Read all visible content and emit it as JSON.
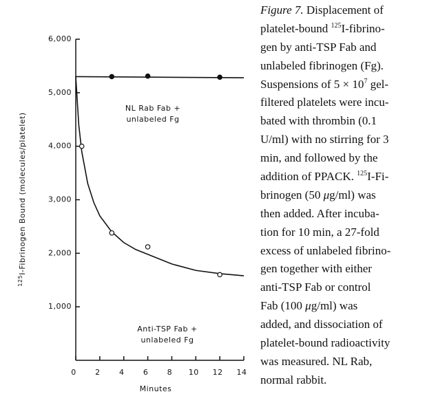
{
  "chart_data": {
    "type": "scatter",
    "x_label": "Minutes",
    "y_label": {
      "sup": "125",
      "text": "I-Fibrinogen Bound (molecules/platelet)"
    },
    "xlim": [
      0,
      14
    ],
    "xticks": [
      0,
      2,
      4,
      6,
      8,
      10,
      12,
      14
    ],
    "ylim": [
      0,
      6000
    ],
    "yticks": [
      {
        "value": 1000,
        "label": "1,000"
      },
      {
        "value": 2000,
        "label": "2,000"
      },
      {
        "value": 3000,
        "label": "3,000"
      },
      {
        "value": 4000,
        "label": "4,000"
      },
      {
        "value": 5000,
        "label": "5,000"
      },
      {
        "value": 6000,
        "label": "6,000"
      }
    ],
    "color": "#111111",
    "series": [
      {
        "name": [
          "NL Rab Fab +",
          "unlabeled Fg"
        ],
        "marker": "filled",
        "x": [
          3,
          6,
          12
        ],
        "values": [
          5300,
          5310,
          5290
        ],
        "fit_x": [
          0,
          14
        ],
        "fit_values": [
          5300,
          5280
        ]
      },
      {
        "name": [
          "Anti-TSP Fab +",
          "unlabeled Fg"
        ],
        "marker": "open",
        "x": [
          0.5,
          3,
          6,
          12
        ],
        "values": [
          4000,
          2380,
          2120,
          1600
        ],
        "fit_x": [
          0,
          0.25,
          0.5,
          1,
          1.5,
          2,
          3,
          4,
          5,
          6,
          8,
          10,
          12,
          14
        ],
        "fit_values": [
          5300,
          4400,
          3900,
          3300,
          2950,
          2700,
          2400,
          2200,
          2070,
          1980,
          1800,
          1680,
          1620,
          1580
        ]
      }
    ]
  },
  "caption": {
    "lines": [
      [
        {
          "t": "Figure 7.",
          "f": "i"
        },
        " Displacement of"
      ],
      [
        "platelet-bound ",
        {
          "t": "125",
          "f": "sup"
        },
        "I-fibrino-"
      ],
      [
        "gen by anti-TSP Fab and"
      ],
      [
        "unlabeled fibrinogen (Fg)."
      ],
      [
        "Suspensions of 5 × 10",
        {
          "t": "7",
          "f": "sup"
        },
        " gel-"
      ],
      [
        "filtered platelets were incu-"
      ],
      [
        "bated with thrombin (0.1"
      ],
      [
        "U/ml) with no stirring for 3"
      ],
      [
        "min, and followed by the"
      ],
      [
        "addition of PPACK. ",
        {
          "t": "125",
          "f": "sup"
        },
        "I-Fi-"
      ],
      [
        "brinogen (50 ",
        {
          "t": "μ",
          "f": "i"
        },
        "g/ml) was"
      ],
      [
        "then added. After incuba-"
      ],
      [
        "tion for 10 min, a 27-fold"
      ],
      [
        "excess of unlabeled fibrino-"
      ],
      [
        "gen together with either"
      ],
      [
        "anti-TSP Fab or control"
      ],
      [
        "Fab (100 ",
        {
          "t": "μ",
          "f": "i"
        },
        "g/ml) was"
      ],
      [
        "added, and dissociation of"
      ],
      [
        "platelet-bound radioactivity"
      ],
      [
        "was measured. NL Rab,"
      ],
      [
        "normal rabbit."
      ]
    ]
  }
}
